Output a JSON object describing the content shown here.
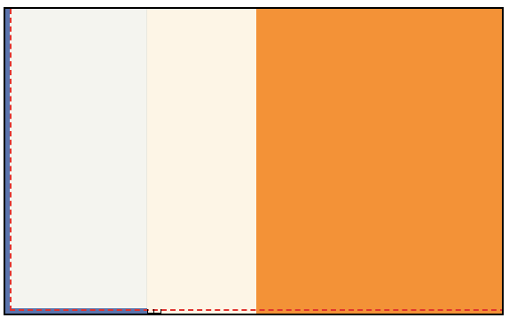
{
  "colors": {
    "frame_border": "#000000",
    "left_strip": "#5a74ad",
    "light_panel": "#f4f4ef",
    "cream_panel": "#fdf5e6",
    "orange_panel": "#f39237",
    "dashed_guide": "#e0332f"
  },
  "icons": {
    "ruler_ticks": "ruler-tick-marks"
  }
}
